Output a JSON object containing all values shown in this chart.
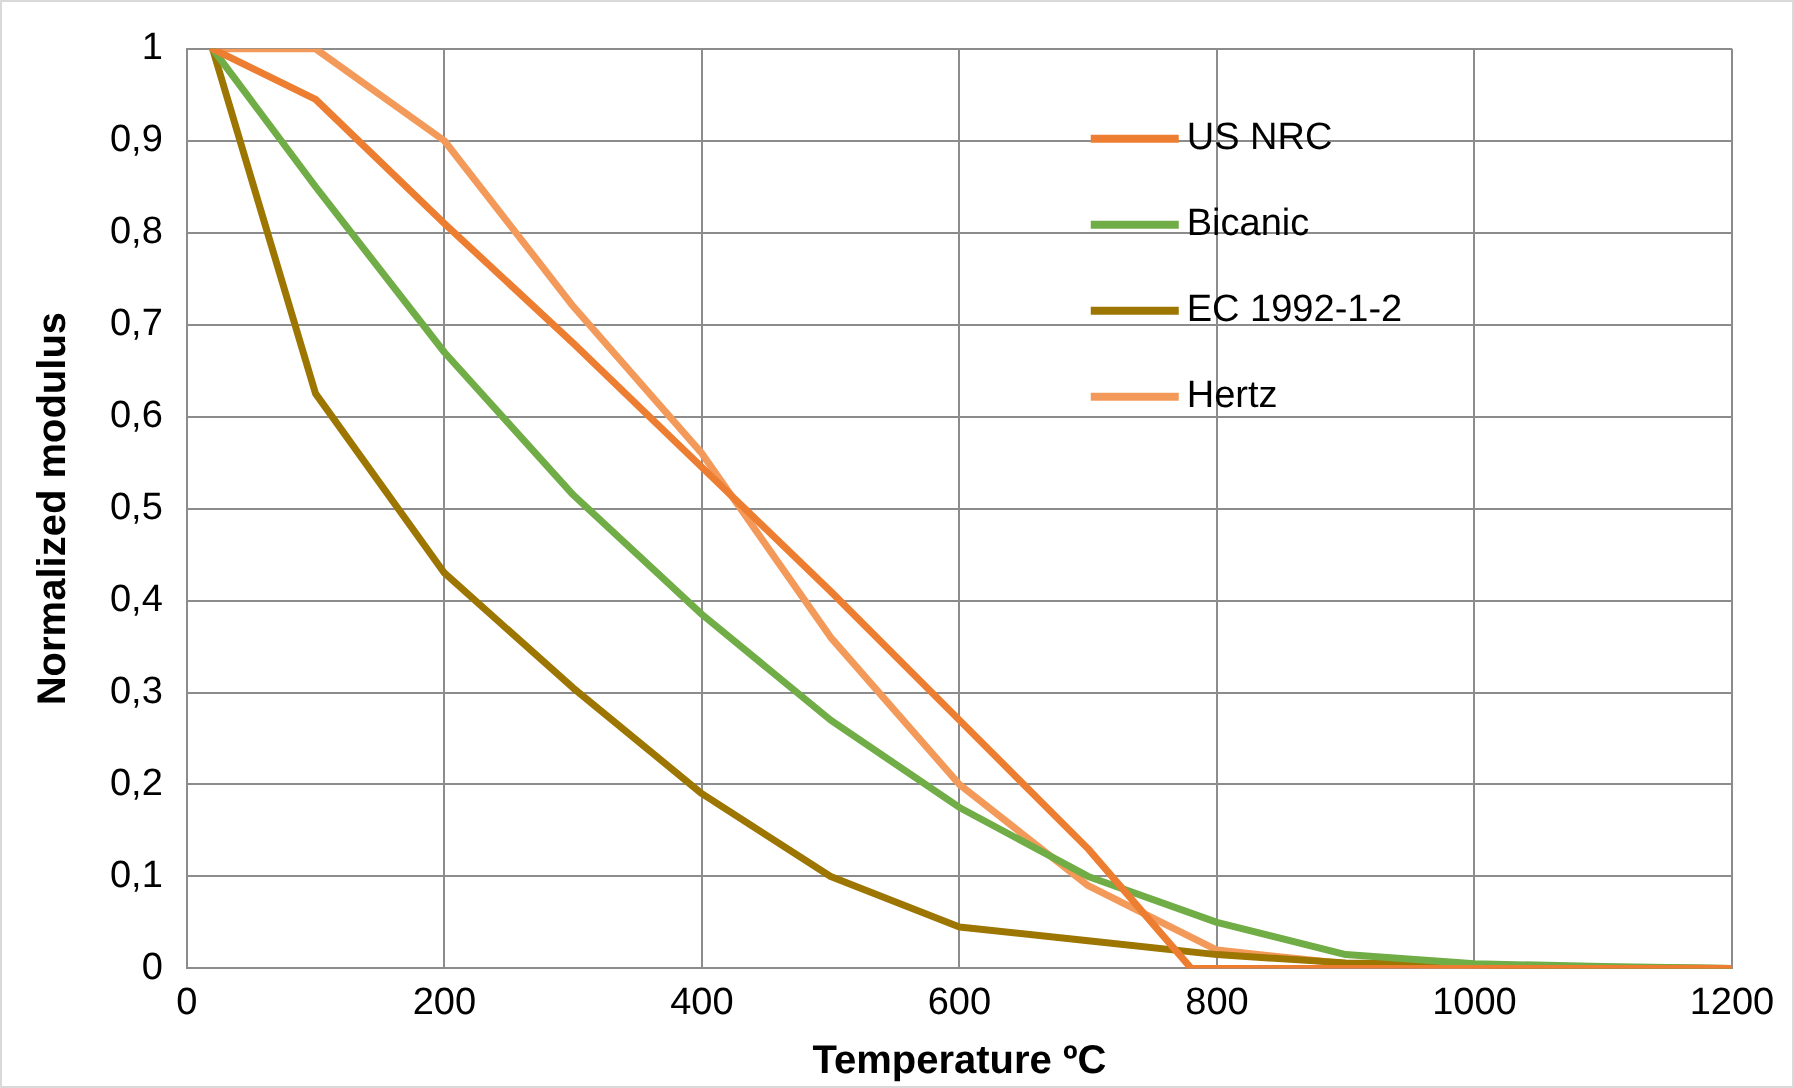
{
  "chart_data": {
    "type": "line",
    "xlabel": "Temperature ºC",
    "ylabel": "Normalized modulus",
    "xlim": [
      0,
      1200
    ],
    "xticks": [
      0,
      200,
      400,
      600,
      800,
      1000,
      1200
    ],
    "ylim": [
      0,
      1
    ],
    "yticks": [
      0,
      {
        "value": 0.1,
        "label": "0,1"
      },
      {
        "value": 0.2,
        "label": "0,2"
      },
      {
        "value": 0.3,
        "label": "0,3"
      },
      {
        "value": 0.4,
        "label": "0,4"
      },
      {
        "value": 0.5,
        "label": "0,5"
      },
      {
        "value": 0.6,
        "label": "0,6"
      },
      {
        "value": 0.7,
        "label": "0,7"
      },
      {
        "value": 0.8,
        "label": "0,8"
      },
      {
        "value": 0.9,
        "label": "0,9"
      },
      1
    ],
    "grid": true,
    "legend": "top right",
    "marker": "none",
    "line_style": "solid",
    "series": [
      {
        "name": "US NRC",
        "color": "#ed7d31",
        "x": [
          20,
          100,
          200,
          300,
          400,
          500,
          600,
          700,
          780,
          800,
          900,
          1000,
          1100,
          1200
        ],
        "values": [
          1,
          0.945,
          0.81,
          0.68,
          0.545,
          0.41,
          0.27,
          0.13,
          0,
          0,
          0,
          0,
          0,
          0
        ]
      },
      {
        "name": "Bicanic",
        "color": "#70ad47",
        "x": [
          20,
          100,
          200,
          300,
          400,
          500,
          600,
          700,
          800,
          900,
          1000,
          1100,
          1200
        ],
        "values": [
          1,
          0.85,
          0.67,
          0.515,
          0.385,
          0.27,
          0.175,
          0.1,
          0.05,
          0.015,
          0.005,
          0.002,
          0
        ]
      },
      {
        "name": "EC 1992-1-2",
        "color": "#9c7600",
        "x": [
          20,
          100,
          200,
          300,
          400,
          500,
          600,
          700,
          800,
          900,
          1000,
          1100,
          1200
        ],
        "values": [
          1,
          0.625,
          0.43,
          0.305,
          0.19,
          0.1,
          0.045,
          0.03,
          0.015,
          0.006,
          0.004,
          0.001,
          0
        ]
      },
      {
        "name": "Hertz",
        "color": "#f39a5a",
        "x": [
          20,
          100,
          200,
          300,
          400,
          500,
          600,
          700,
          800,
          900,
          1000,
          1100,
          1200
        ],
        "values": [
          1,
          1,
          0.9,
          0.72,
          0.56,
          0.36,
          0.2,
          0.09,
          0.02,
          0.005,
          0.003,
          0.001,
          0
        ]
      }
    ]
  }
}
